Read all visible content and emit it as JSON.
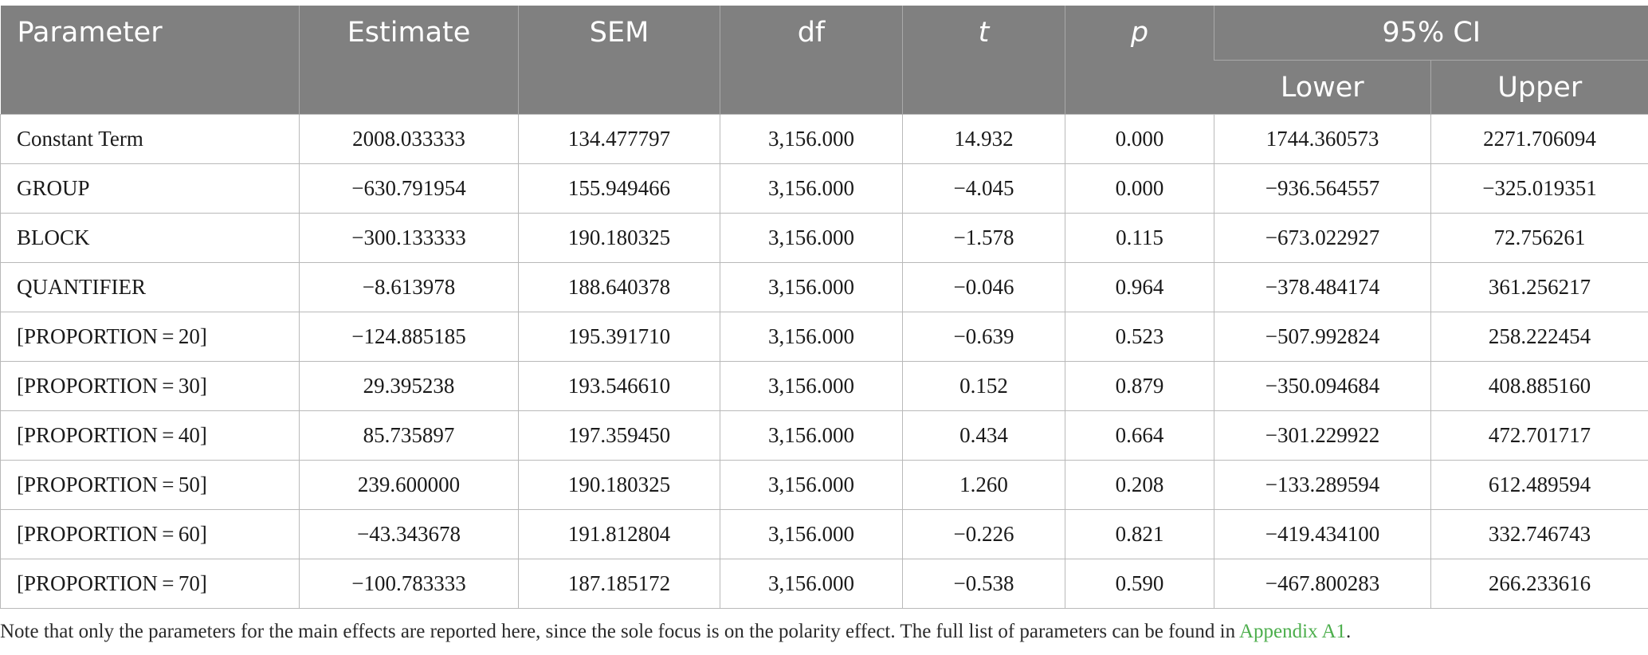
{
  "header": {
    "parameter": "Parameter",
    "estimate": "Estimate",
    "sem": "SEM",
    "df": "df",
    "t": "t",
    "p": "p",
    "ci": "95% CI",
    "lower": "Lower",
    "upper": "Upper"
  },
  "rows": [
    {
      "parameter": "Constant Term",
      "estimate": "2008.033333",
      "sem": "134.477797",
      "df": "3,156.000",
      "t": "14.932",
      "p": "0.000",
      "lower": "1744.360573",
      "upper": "2271.706094"
    },
    {
      "parameter": "GROUP",
      "estimate": "−630.791954",
      "sem": "155.949466",
      "df": "3,156.000",
      "t": "−4.045",
      "p": "0.000",
      "lower": "−936.564557",
      "upper": "−325.019351"
    },
    {
      "parameter": "BLOCK",
      "estimate": "−300.133333",
      "sem": "190.180325",
      "df": "3,156.000",
      "t": "−1.578",
      "p": "0.115",
      "lower": "−673.022927",
      "upper": "72.756261"
    },
    {
      "parameter": "QUANTIFIER",
      "estimate": "−8.613978",
      "sem": "188.640378",
      "df": "3,156.000",
      "t": "−0.046",
      "p": "0.964",
      "lower": "−378.484174",
      "upper": "361.256217"
    },
    {
      "parameter": "[PROPORTION = 20]",
      "estimate": "−124.885185",
      "sem": "195.391710",
      "df": "3,156.000",
      "t": "−0.639",
      "p": "0.523",
      "lower": "−507.992824",
      "upper": "258.222454"
    },
    {
      "parameter": "[PROPORTION = 30]",
      "estimate": "29.395238",
      "sem": "193.546610",
      "df": "3,156.000",
      "t": "0.152",
      "p": "0.879",
      "lower": "−350.094684",
      "upper": "408.885160"
    },
    {
      "parameter": "[PROPORTION = 40]",
      "estimate": "85.735897",
      "sem": "197.359450",
      "df": "3,156.000",
      "t": "0.434",
      "p": "0.664",
      "lower": "−301.229922",
      "upper": "472.701717"
    },
    {
      "parameter": "[PROPORTION = 50]",
      "estimate": "239.600000",
      "sem": "190.180325",
      "df": "3,156.000",
      "t": "1.260",
      "p": "0.208",
      "lower": "−133.289594",
      "upper": "612.489594"
    },
    {
      "parameter": "[PROPORTION = 60]",
      "estimate": "−43.343678",
      "sem": "191.812804",
      "df": "3,156.000",
      "t": "−0.226",
      "p": "0.821",
      "lower": "−419.434100",
      "upper": "332.746743"
    },
    {
      "parameter": "[PROPORTION = 70]",
      "estimate": "−100.783333",
      "sem": "187.185172",
      "df": "3,156.000",
      "t": "−0.538",
      "p": "0.590",
      "lower": "−467.800283",
      "upper": "266.233616"
    }
  ],
  "note": {
    "text": "Note that only the parameters for the main effects are reported here, since the sole focus is on the polarity effect. The full list of parameters can be found in ",
    "link": "Appendix A1",
    "end": "."
  },
  "colors": {
    "header_bg": "#808080",
    "header_text": "#ffffff",
    "link": "#4cae4c"
  }
}
